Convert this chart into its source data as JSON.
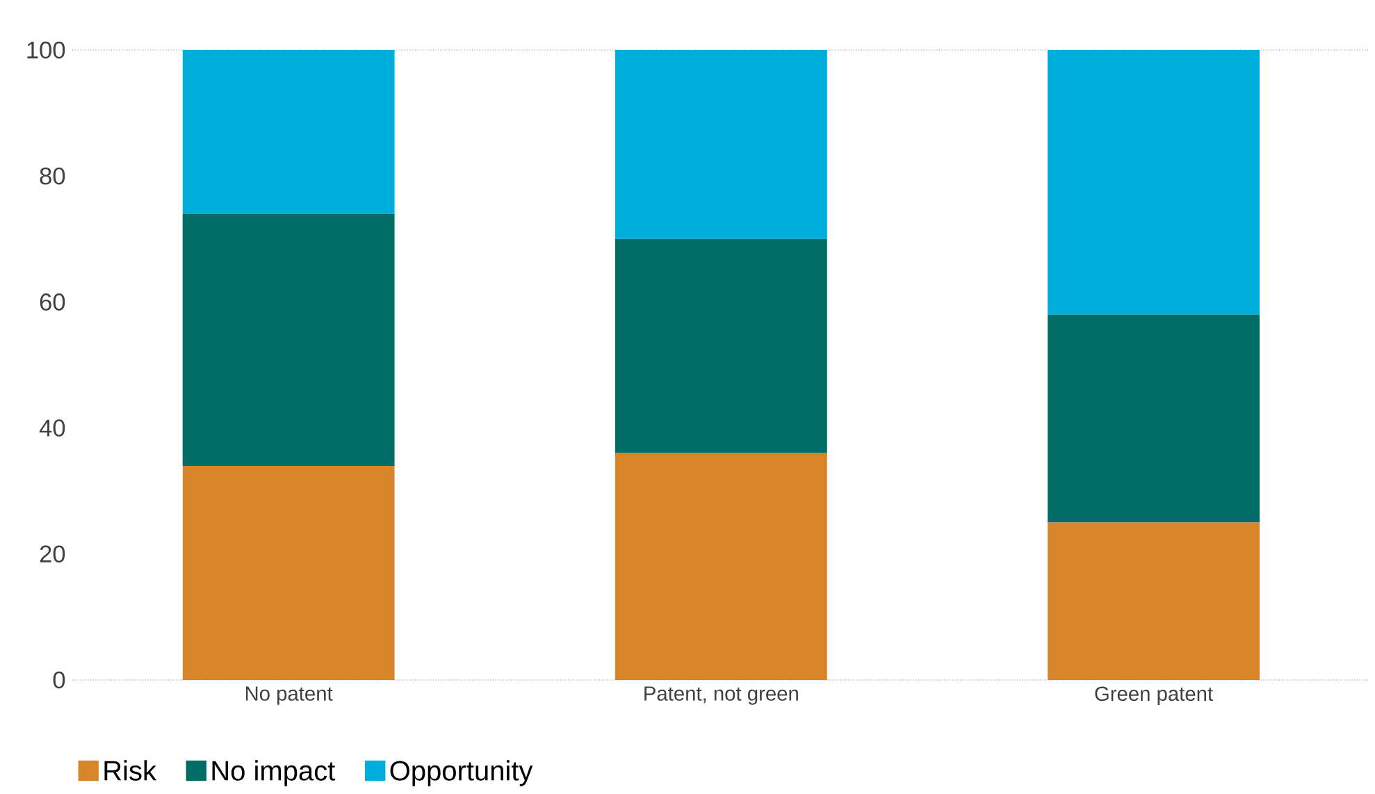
{
  "chart_data": {
    "type": "bar",
    "stacked": true,
    "categories": [
      "No patent",
      "Patent, not green",
      "Green patent"
    ],
    "series": [
      {
        "name": "Risk",
        "color": "#d8852a",
        "values": [
          34,
          36,
          25
        ]
      },
      {
        "name": "No impact",
        "color": "#006d65",
        "values": [
          40,
          34,
          33
        ]
      },
      {
        "name": "Opportunity",
        "color": "#00aedb",
        "values": [
          26,
          30,
          42
        ]
      }
    ],
    "ylim": [
      0,
      100
    ],
    "yticks": [
      0,
      20,
      40,
      60,
      80,
      100
    ],
    "legend": "bottom left"
  }
}
